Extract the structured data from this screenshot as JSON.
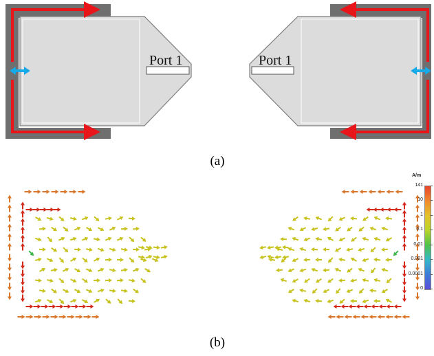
{
  "panel_a": {
    "caption": "(a)",
    "left_port_label": "Port 1",
    "right_port_label": "Port 1",
    "colors": {
      "body_fill": "#dcdcdc",
      "body_stroke": "#7f7f7f",
      "frame_fill": "#6f6f6f",
      "current_arrow": "#e8161b",
      "feed_arrow": "#18a9e8",
      "port_slot_fill": "#ffffff"
    },
    "icons": [
      "current-arrow-icon",
      "feed-arrow-icon"
    ]
  },
  "panel_b": {
    "caption": "(b)",
    "colorbar": {
      "unit": "A/m",
      "ticks": [
        "141",
        "10",
        "1",
        "0.1",
        "0.01",
        "0.001",
        "0.0001",
        "0"
      ],
      "gradient_colors": [
        "#e8432b",
        "#f08a2c",
        "#e3c22a",
        "#b8d42a",
        "#4fc24a",
        "#34b8c8",
        "#3d7bd8",
        "#5a4fd8"
      ]
    },
    "field_colors": {
      "strong": "#d42a1c",
      "medium": "#d9762a",
      "weak": "#c8c21e",
      "faint": "#3cb84a"
    }
  }
}
